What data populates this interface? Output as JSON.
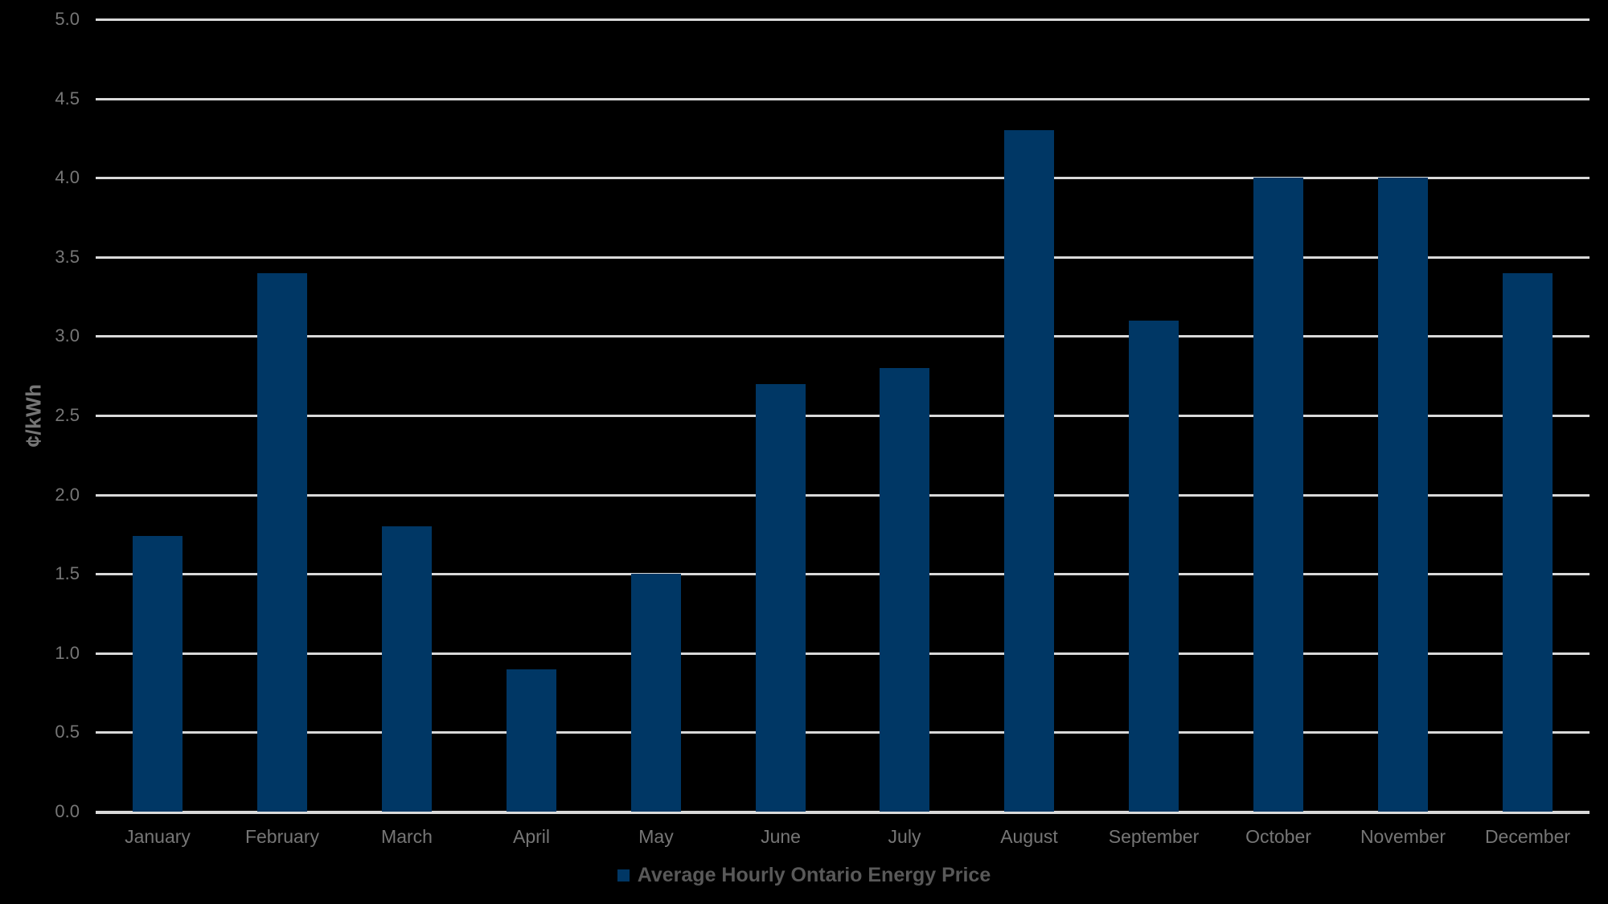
{
  "page": {
    "background_color": "#000000"
  },
  "chart_data": {
    "type": "bar",
    "title": "",
    "categories": [
      "January",
      "February",
      "March",
      "April",
      "May",
      "June",
      "July",
      "August",
      "September",
      "October",
      "November",
      "December"
    ],
    "series": [
      {
        "name": "Average Hourly Ontario Energy Price",
        "values": [
          1.74,
          3.4,
          1.8,
          0.9,
          1.5,
          2.7,
          2.8,
          4.3,
          3.1,
          4.0,
          4.0,
          3.4
        ]
      }
    ],
    "xlabel": "",
    "ylabel": "¢/kWh",
    "ylim": [
      0,
      5
    ],
    "ytick_step": 0.5,
    "ytick_labels": [
      "0.0",
      "0.5",
      "1.0",
      "1.5",
      "2.0",
      "2.5",
      "3.0",
      "3.5",
      "4.0",
      "4.5",
      "5.0"
    ],
    "grid": true,
    "legend_position": "bottom",
    "colors": {
      "background": "#000000",
      "bar": "#003765",
      "gridline": "#d9d9d9",
      "tick_label": "#767676",
      "axis_title": "#767676",
      "legend_text": "#595959"
    }
  },
  "legend": {
    "label": "Average Hourly Ontario Energy Price",
    "swatch_color": "#003765"
  },
  "y_axis": {
    "title": "¢/kWh"
  }
}
